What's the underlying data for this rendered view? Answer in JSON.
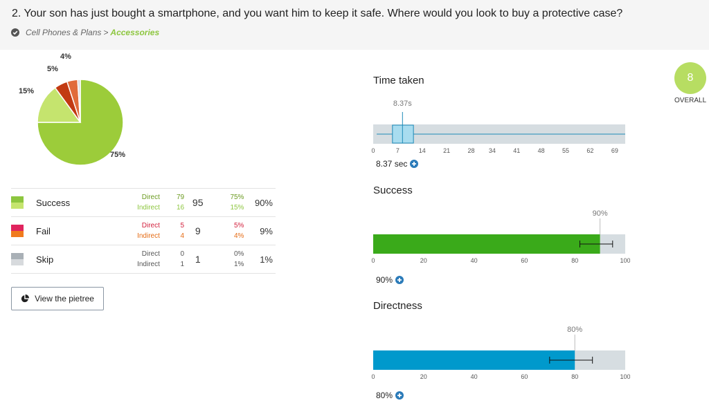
{
  "header": {
    "question": "2. Your son has just bought a smartphone, and you want him to keep it safe. Where would you look to buy a protective case?",
    "breadcrumb": [
      {
        "label": "Cell Phones & Plans",
        "active": false
      },
      {
        "label": "Accessories",
        "active": true
      }
    ],
    "separator": ">"
  },
  "chart_data": [
    {
      "type": "pie",
      "slices": [
        {
          "label": "75%",
          "value": 75,
          "color": "#9ccc3a"
        },
        {
          "label": "15%",
          "value": 15,
          "color": "#c5e46e"
        },
        {
          "label": "5%",
          "value": 5,
          "color": "#c23a12"
        },
        {
          "label": "4%",
          "value": 4,
          "color": "#e16b3a"
        },
        {
          "label": "",
          "value": 1,
          "color": "#d7dadd"
        }
      ]
    },
    {
      "type": "box",
      "title": "Time taken",
      "median_label": "8.37s",
      "xlim": [
        0,
        72
      ],
      "ticks": [
        0,
        7,
        14,
        21,
        28,
        34,
        41,
        48,
        55,
        62,
        69
      ],
      "whisker": [
        1,
        72
      ],
      "box": [
        5.5,
        11.5
      ],
      "median": 8.37
    },
    {
      "type": "bar",
      "title": "Success",
      "value": 90,
      "value_label": "90%",
      "xlim": [
        0,
        100
      ],
      "ticks": [
        0,
        20,
        40,
        60,
        80,
        100
      ],
      "error": [
        82,
        95
      ],
      "color": "#3aaa1a"
    },
    {
      "type": "bar",
      "title": "Directness",
      "value": 80,
      "value_label": "80%",
      "xlim": [
        0,
        100
      ],
      "ticks": [
        0,
        20,
        40,
        60,
        80,
        100
      ],
      "error": [
        70,
        87
      ],
      "color": "#0099cc"
    }
  ],
  "stats": {
    "rows": [
      {
        "category": "Success",
        "colors": [
          "#8dc63f",
          "#c5e46e"
        ],
        "sub_colors": [
          "#6a9a1f",
          "#8dc63f"
        ],
        "sub_labels": [
          "Direct",
          "Indirect"
        ],
        "counts": [
          "79",
          "16"
        ],
        "total": "95",
        "pcts": [
          "75%",
          "15%"
        ],
        "pct_total": "90%"
      },
      {
        "category": "Fail",
        "colors": [
          "#e0245e",
          "#f07b1d"
        ],
        "sub_colors": [
          "#d21f3c",
          "#e56b14"
        ],
        "sub_labels": [
          "Direct",
          "Indirect"
        ],
        "counts": [
          "5",
          "4"
        ],
        "total": "9",
        "pcts": [
          "5%",
          "4%"
        ],
        "pct_total": "9%"
      },
      {
        "category": "Skip",
        "colors": [
          "#a9b0b6",
          "#d7dadd"
        ],
        "sub_colors": [
          "#555555",
          "#555555"
        ],
        "sub_labels": [
          "Direct",
          "Indirect"
        ],
        "counts": [
          "0",
          "1"
        ],
        "total": "1",
        "pcts": [
          "0%",
          "1%"
        ],
        "pct_total": "1%"
      }
    ]
  },
  "buttons": {
    "pietree": "View the pietree"
  },
  "metrics": {
    "time_value": "8.37 sec",
    "success_value": "90%",
    "directness_value": "80%"
  },
  "overall": {
    "score": "8",
    "label": "OVERALL",
    "color": "#b7dd62"
  },
  "colors": {
    "accent": "#8dc63f",
    "link_blue": "#2b7bb9"
  },
  "icons": {
    "breadcrumb": "check-circle-icon",
    "pietree": "pie-chart-icon",
    "expand": "plus-circle-icon"
  }
}
